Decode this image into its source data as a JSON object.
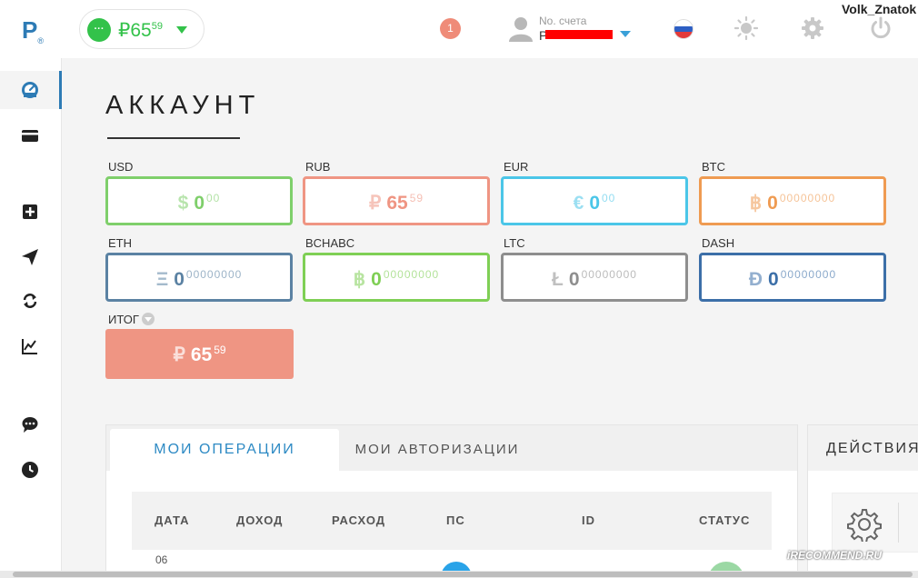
{
  "header": {
    "logo": "P",
    "logo_sub": "®",
    "balance": {
      "symbol": "₽",
      "whole": "65",
      "frac": "59",
      "menu": "···"
    },
    "notifications": "1",
    "account_label": "No. счета",
    "account_value": "P",
    "username": "Volk_Znatok"
  },
  "sidebar": {
    "items": [
      {
        "icon": "dashboard-icon",
        "active": true
      },
      {
        "icon": "card-icon"
      },
      {
        "icon": "add-icon"
      },
      {
        "icon": "send-icon"
      },
      {
        "icon": "exchange-icon"
      },
      {
        "icon": "chart-icon"
      },
      {
        "icon": "chat-icon"
      },
      {
        "icon": "clock-icon"
      }
    ]
  },
  "page": {
    "title": "АККАУНТ"
  },
  "currencies": [
    {
      "code": "USD",
      "symbol": "$",
      "whole": "0",
      "frac": "00",
      "color": "#7fcf6b"
    },
    {
      "code": "RUB",
      "symbol": "₽",
      "whole": "65",
      "frac": "59",
      "color": "#ef9583"
    },
    {
      "code": "EUR",
      "symbol": "€",
      "whole": "0",
      "frac": "00",
      "color": "#4bc6e8"
    },
    {
      "code": "BTC",
      "symbol": "฿",
      "whole": "0",
      "frac": "00000000",
      "color": "#ef9b52"
    },
    {
      "code": "ETH",
      "symbol": "Ξ",
      "whole": "0",
      "frac": "00000000",
      "color": "#5b82a3"
    },
    {
      "code": "BCHABC",
      "symbol": "฿",
      "whole": "0",
      "frac": "00000000",
      "color": "#7fcf55"
    },
    {
      "code": "LTC",
      "symbol": "Ł",
      "whole": "0",
      "frac": "00000000",
      "color": "#8e8e8e"
    },
    {
      "code": "DASH",
      "symbol": "Đ",
      "whole": "0",
      "frac": "00000000",
      "color": "#3c6fa8"
    }
  ],
  "total": {
    "label": "ИТОГ",
    "symbol": "₽",
    "whole": "65",
    "frac": "59"
  },
  "operations": {
    "tabs": [
      "МОИ ОПЕРАЦИИ",
      "МОИ АВТОРИЗАЦИИ"
    ],
    "columns": [
      "ДАТА",
      "ДОХОД",
      "РАСХОД",
      "ПС",
      "ID",
      "СТАТУС"
    ],
    "first_row_date": "06"
  },
  "actions": {
    "title": "ДЕЙСТВИЯ"
  },
  "watermark": "iRECOMMEND.RU"
}
